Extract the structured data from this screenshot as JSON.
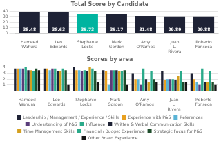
{
  "chart_data": [
    {
      "type": "bar",
      "title": "Total Score by Candidate",
      "categories": [
        "Hameed Wahura",
        "Leo Edwards",
        "Stephanie Locks",
        "Mark Gordon",
        "Amy O'Ramos",
        "Juan L. Rivera",
        "Roberto Fonseca"
      ],
      "values": [
        38.48,
        38.63,
        35.73,
        35.17,
        31.48,
        29.89,
        29.88
      ],
      "colors": [
        "#1e2235",
        "#1e2235",
        "#00b4a0",
        "#1e2235",
        "#1e2235",
        "#1e2235",
        "#1e2235"
      ],
      "ylim": [
        0,
        44
      ],
      "yticks": [
        0,
        10,
        20,
        30,
        40
      ],
      "grid": true,
      "data_labels": true
    },
    {
      "type": "bar",
      "title": "Scores by area",
      "categories": [
        "Hameed Wahura",
        "Leo Edwards",
        "Stephanie Locks",
        "Mark Gordon",
        "Amy O'Ramos",
        "Juan L. Rivera",
        "Roberto Fonseca"
      ],
      "series": [
        {
          "name": "Leadership / Management / Experience / Skills",
          "color": "#1e2235",
          "values": [
            3.8,
            3.8,
            4.0,
            3.5,
            3.0,
            3.3,
            3.0
          ]
        },
        {
          "name": "Experience with P&S",
          "color": "#e8a020",
          "values": [
            3.8,
            3.8,
            3.5,
            3.3,
            2.0,
            1.8,
            2.0
          ]
        },
        {
          "name": "References",
          "color": "#5ab4d6",
          "values": [
            3.8,
            3.5,
            3.5,
            1.0,
            2.0,
            2.0,
            1.5
          ]
        },
        {
          "name": "Understanding of P&S",
          "color": "#5a3d7a",
          "values": [
            3.8,
            3.8,
            3.3,
            3.5,
            1.0,
            2.0,
            1.0
          ]
        },
        {
          "name": "Influence",
          "color": "#2aaa8a",
          "values": [
            4.0,
            3.8,
            3.5,
            3.5,
            3.8,
            2.0,
            3.8
          ]
        },
        {
          "name": "Written & Verbal Communication Skills",
          "color": "#1e2235",
          "values": [
            3.5,
            3.3,
            3.3,
            3.5,
            2.0,
            1.8,
            1.5
          ]
        },
        {
          "name": "Time Management Skills",
          "color": "#d4a020",
          "values": [
            3.5,
            3.3,
            4.0,
            3.3,
            1.5,
            2.5,
            1.5
          ]
        },
        {
          "name": "Financial / Budget Experience",
          "color": "#2aaa8a",
          "values": [
            3.3,
            3.8,
            3.8,
            3.3,
            3.3,
            3.3,
            3.3
          ]
        },
        {
          "name": "Strategic Focus for P&S",
          "color": "#1e4d2b",
          "values": [
            3.8,
            3.5,
            3.3,
            3.5,
            2.0,
            1.5,
            1.5
          ]
        },
        {
          "name": "Other Board Experience",
          "color": "#151515",
          "values": [
            3.5,
            1.0,
            1.5,
            1.0,
            1.5,
            1.5,
            1.0
          ]
        }
      ],
      "ylim": [
        0,
        4.5
      ],
      "yticks": [
        1,
        2,
        3,
        4
      ],
      "grid": true,
      "legend": "bottom"
    }
  ]
}
